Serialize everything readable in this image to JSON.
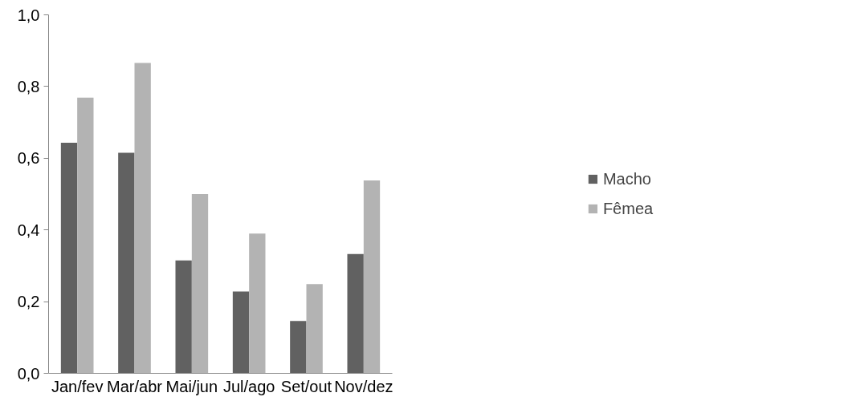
{
  "chart_data": {
    "type": "bar",
    "categories": [
      "Jan/fev",
      "Mar/abr",
      "Mai/jun",
      "Jul/ago",
      "Set/out",
      "Nov/dez"
    ],
    "series": [
      {
        "name": "Macho",
        "color": "#616161",
        "values": [
          0.643,
          0.615,
          0.315,
          0.228,
          0.146,
          0.333
        ]
      },
      {
        "name": "Fêmea",
        "color": "#b3b3b3",
        "values": [
          0.769,
          0.866,
          0.5,
          0.39,
          0.249,
          0.538
        ]
      }
    ],
    "ylim": [
      0,
      1.0
    ],
    "yticks": [
      {
        "value": 0,
        "label": "0,0"
      },
      {
        "value": 0.2,
        "label": "0,2"
      },
      {
        "value": 0.4,
        "label": "0,4"
      },
      {
        "value": 0.6,
        "label": "0,6"
      },
      {
        "value": 0.8,
        "label": "0,8"
      },
      {
        "value": 1.0,
        "label": "1,0"
      }
    ],
    "grid": false,
    "legend": "right"
  }
}
